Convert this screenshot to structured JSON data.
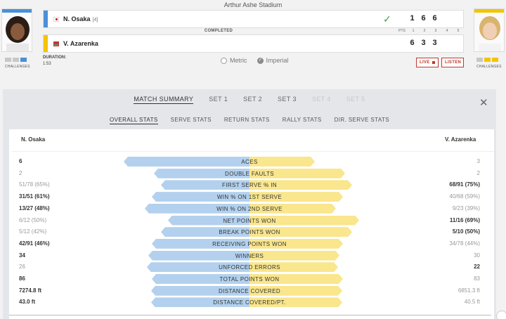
{
  "stadium": "Arthur Ashe Stadium",
  "colors": {
    "player1": "#4a90d9",
    "player2": "#f4c400",
    "bar1": "#b3d1ee",
    "bar2": "#f9e68d",
    "accent": "#c0392b",
    "winner_check": "#3aa845"
  },
  "players": [
    {
      "name": "N. Osaka",
      "seed": "[4]",
      "flag_icon": "japan-flag-icon",
      "sets": [
        "1",
        "6",
        "6"
      ],
      "winner": true
    },
    {
      "name": "V. Azarenka",
      "seed": "",
      "flag_icon": "belarus-flag-icon",
      "sets": [
        "6",
        "3",
        "3"
      ],
      "winner": false
    }
  ],
  "challenges_label": "CHALLENGES",
  "status": "COMPLETED",
  "score_header": {
    "pts": "PTS",
    "sets": [
      "1",
      "2",
      "3",
      "4",
      "5"
    ]
  },
  "duration": {
    "label": "DURATION:",
    "value": "1:53"
  },
  "units": {
    "metric": "Metric",
    "imperial": "Imperial",
    "selected": "Imperial"
  },
  "buttons": {
    "live": "LIVE",
    "listen": "LISTEN"
  },
  "tabs": [
    {
      "label": "MATCH SUMMARY",
      "state": "active"
    },
    {
      "label": "SET 1",
      "state": "normal"
    },
    {
      "label": "SET 2",
      "state": "normal"
    },
    {
      "label": "SET 3",
      "state": "normal"
    },
    {
      "label": "SET 4",
      "state": "disabled"
    },
    {
      "label": "SET 5",
      "state": "disabled"
    }
  ],
  "subtabs": [
    {
      "label": "OVERALL STATS",
      "state": "active"
    },
    {
      "label": "SERVE STATS",
      "state": "normal"
    },
    {
      "label": "RETURN STATS",
      "state": "normal"
    },
    {
      "label": "RALLY STATS",
      "state": "normal"
    },
    {
      "label": "DIR. SERVE STATS",
      "state": "normal"
    }
  ],
  "stats_header": {
    "p1": "N. Osaka",
    "p2": "V. Azarenka"
  },
  "stats": [
    {
      "label": "ACES",
      "p1": "6",
      "p2": "3",
      "p1_share": 0.67,
      "p2_share": 0.33,
      "hl": "p1"
    },
    {
      "label": "DOUBLE FAULTS",
      "p1": "2",
      "p2": "2",
      "p1_share": 0.5,
      "p2_share": 0.5,
      "hl": ""
    },
    {
      "label": "FIRST SERVE % IN",
      "p1": "51/78 (65%)",
      "p2": "68/91 (75%)",
      "p1_share": 0.46,
      "p2_share": 0.54,
      "hl": "p2"
    },
    {
      "label": "WIN % ON 1ST SERVE",
      "p1": "31/51 (61%)",
      "p2": "40/68 (59%)",
      "p1_share": 0.51,
      "p2_share": 0.49,
      "hl": "p1"
    },
    {
      "label": "WIN % ON 2ND SERVE",
      "p1": "13/27 (48%)",
      "p2": "9/23 (39%)",
      "p1_share": 0.55,
      "p2_share": 0.45,
      "hl": "p1"
    },
    {
      "label": "NET POINTS WON",
      "p1": "6/12 (50%)",
      "p2": "11/16 (69%)",
      "p1_share": 0.42,
      "p2_share": 0.58,
      "hl": "p2"
    },
    {
      "label": "BREAK POINTS WON",
      "p1": "5/12 (42%)",
      "p2": "5/10 (50%)",
      "p1_share": 0.46,
      "p2_share": 0.54,
      "hl": "p2"
    },
    {
      "label": "RECEIVING POINTS WON",
      "p1": "42/91 (46%)",
      "p2": "34/78 (44%)",
      "p1_share": 0.51,
      "p2_share": 0.49,
      "hl": "p1"
    },
    {
      "label": "WINNERS",
      "p1": "34",
      "p2": "30",
      "p1_share": 0.53,
      "p2_share": 0.47,
      "hl": "p1"
    },
    {
      "label": "UNFORCED ERRORS",
      "p1": "26",
      "p2": "22",
      "p1_share": 0.54,
      "p2_share": 0.46,
      "hl": "p2"
    },
    {
      "label": "TOTAL POINTS WON",
      "p1": "86",
      "p2": "83",
      "p1_share": 0.51,
      "p2_share": 0.49,
      "hl": "p1"
    },
    {
      "label": "DISTANCE COVERED",
      "p1": "7274.8 ft",
      "p2": "6851.3 ft",
      "p1_share": 0.515,
      "p2_share": 0.485,
      "hl": "p1"
    },
    {
      "label": "DISTANCE COVERED/PT.",
      "p1": "43.0 ft",
      "p2": "40.5 ft",
      "p1_share": 0.515,
      "p2_share": 0.485,
      "hl": "p1"
    }
  ]
}
